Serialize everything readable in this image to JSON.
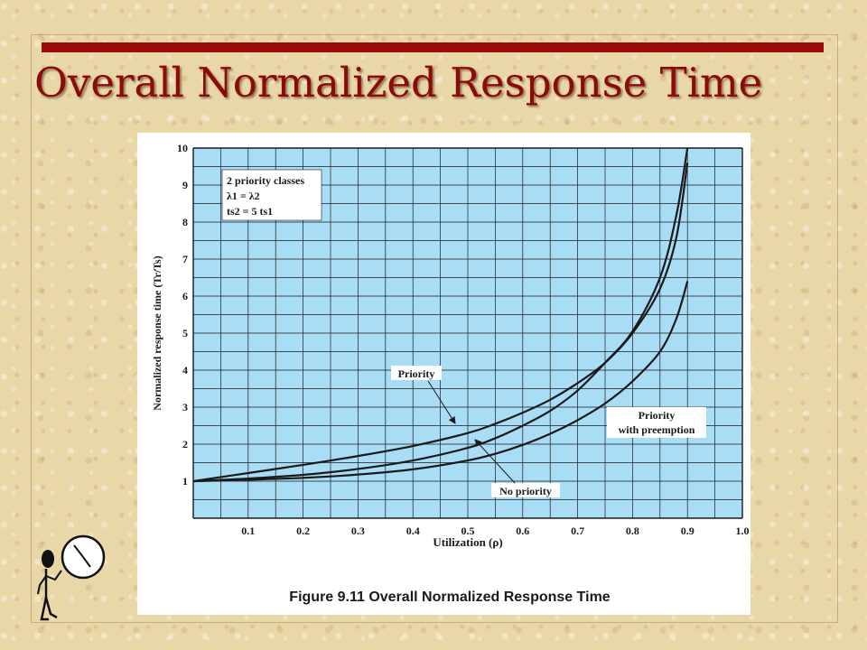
{
  "slide": {
    "title": "Overall Normalized Response Time",
    "caption": "Figure 9.11 Overall Normalized Response Time"
  },
  "colors": {
    "title": "#8b0a0a",
    "title_bar": "#9b0d0d",
    "plot_background": "#a9dcf5",
    "grid": "#1a1a1a",
    "curve": "#1a1a1a"
  },
  "chart_data": {
    "type": "line",
    "title": "",
    "xlabel": "Utilization (ρ)",
    "ylabel": "Normalized response time (Tr/Ts)",
    "xlim": [
      0,
      1.0
    ],
    "ylim": [
      0,
      10
    ],
    "x_ticks": [
      "0.1",
      "0.2",
      "0.3",
      "0.4",
      "0.5",
      "0.6",
      "0.7",
      "0.8",
      "0.9",
      "1.0"
    ],
    "y_ticks": [
      "1",
      "2",
      "3",
      "4",
      "5",
      "6",
      "7",
      "8",
      "9",
      "10"
    ],
    "grid": true,
    "legend_box": {
      "placement": "top-left",
      "lines": [
        "2 priority classes",
        "λ1 = λ2",
        "ts2 = 5 ts1"
      ]
    },
    "annotations": [
      {
        "text": "Priority",
        "points_to_series": "Priority"
      },
      {
        "text": "Priority",
        "text2": "with preemption",
        "points_to_series": "Priority with preemption"
      },
      {
        "text": "No priority",
        "points_to_series": "No priority"
      }
    ],
    "series": [
      {
        "name": "Priority",
        "x": [
          0,
          0.1,
          0.2,
          0.3,
          0.4,
          0.5,
          0.55,
          0.6,
          0.65,
          0.7,
          0.75,
          0.8,
          0.85,
          0.88,
          0.9
        ],
        "y": [
          1.0,
          1.22,
          1.44,
          1.68,
          1.95,
          2.3,
          2.55,
          2.85,
          3.2,
          3.65,
          4.2,
          5.0,
          6.2,
          7.6,
          9.6
        ]
      },
      {
        "name": "No priority",
        "x": [
          0,
          0.1,
          0.2,
          0.3,
          0.4,
          0.5,
          0.55,
          0.6,
          0.65,
          0.7,
          0.75,
          0.8,
          0.85,
          0.88,
          0.9
        ],
        "y": [
          1.0,
          1.07,
          1.17,
          1.33,
          1.56,
          1.9,
          2.16,
          2.5,
          2.9,
          3.45,
          4.2,
          5.05,
          6.5,
          8.2,
          10.0
        ]
      },
      {
        "name": "Priority with preemption",
        "x": [
          0,
          0.1,
          0.2,
          0.3,
          0.4,
          0.5,
          0.55,
          0.6,
          0.65,
          0.7,
          0.75,
          0.8,
          0.85,
          0.88,
          0.9
        ],
        "y": [
          1.0,
          1.04,
          1.09,
          1.18,
          1.32,
          1.56,
          1.74,
          1.98,
          2.28,
          2.65,
          3.1,
          3.7,
          4.5,
          5.4,
          6.4
        ]
      }
    ]
  }
}
